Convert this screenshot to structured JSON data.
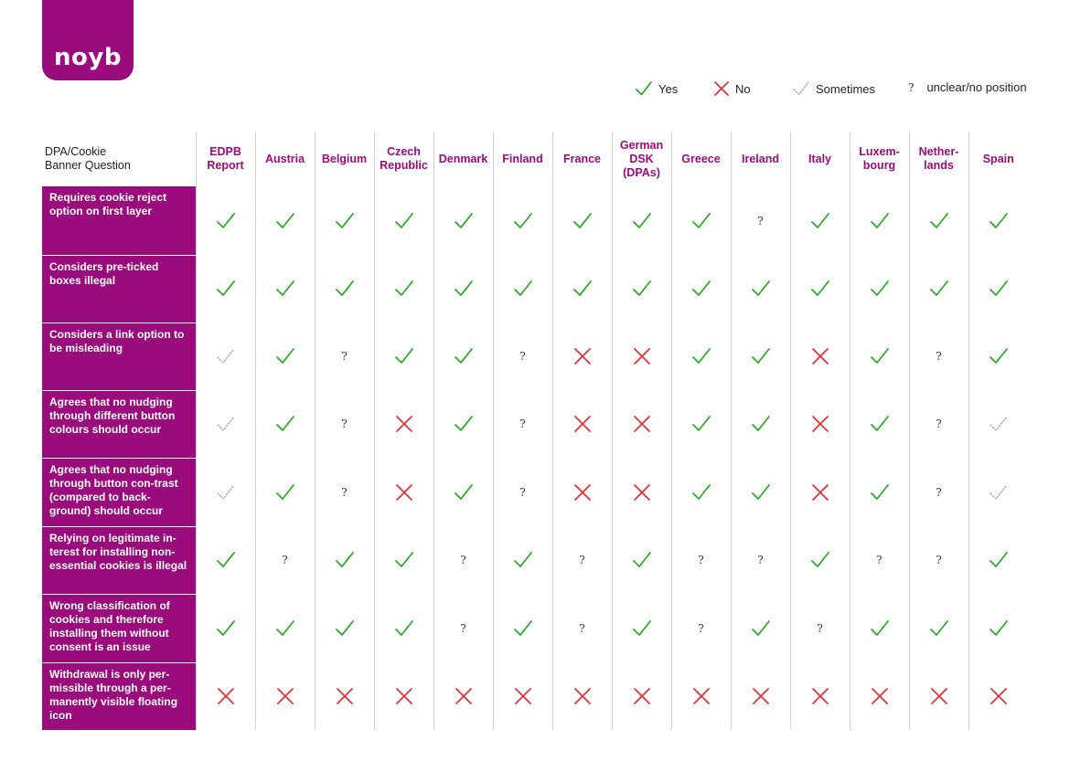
{
  "logo": {
    "text": "noyb"
  },
  "legend": {
    "yes": "Yes",
    "no": "No",
    "sometimes": "Sometimes",
    "unclear": "unclear/no position",
    "unclear_symbol": "?"
  },
  "colors": {
    "brand": "#9a0c7c",
    "yes": "#2eaa2a",
    "no": "#e0343c",
    "sometimes": "#9a9a9a"
  },
  "table": {
    "question_header": "DPA/Cookie\nBanner Question",
    "columns": [
      "EDPB\nReport",
      "Austria",
      "Belgium",
      "Czech\nRepublic",
      "Denmark",
      "Finland",
      "France",
      "German\nDSK\n(DPAs)",
      "Greece",
      "Ireland",
      "Italy",
      "Luxem-\nbourg",
      "Nether-\nlands",
      "Spain"
    ],
    "rows": [
      {
        "question": "Requires cookie reject option on first layer",
        "values": [
          "yes",
          "yes",
          "yes",
          "yes",
          "yes",
          "yes",
          "yes",
          "yes",
          "yes",
          "unclear",
          "yes",
          "yes",
          "yes",
          "yes"
        ]
      },
      {
        "question": "Considers pre-ticked boxes illegal",
        "values": [
          "yes",
          "yes",
          "yes",
          "yes",
          "yes",
          "yes",
          "yes",
          "yes",
          "yes",
          "yes",
          "yes",
          "yes",
          "yes",
          "yes"
        ]
      },
      {
        "question": "Considers a link option to be misleading",
        "values": [
          "sometimes",
          "yes",
          "unclear",
          "yes",
          "yes",
          "unclear",
          "no",
          "no",
          "yes",
          "yes",
          "no",
          "yes",
          "unclear",
          "yes"
        ]
      },
      {
        "question": "Agrees that no nudging through different button colours should occur",
        "values": [
          "sometimes",
          "yes",
          "unclear",
          "no",
          "yes",
          "unclear",
          "no",
          "no",
          "yes",
          "yes",
          "no",
          "yes",
          "unclear",
          "sometimes"
        ]
      },
      {
        "question": "Agrees that no nudging through button con-trast (compared to back-ground) should occur",
        "values": [
          "sometimes",
          "yes",
          "unclear",
          "no",
          "yes",
          "unclear",
          "no",
          "no",
          "yes",
          "yes",
          "no",
          "yes",
          "unclear",
          "sometimes"
        ]
      },
      {
        "question": "Relying on legitimate in-terest for installing non-essential cookies is illegal",
        "values": [
          "yes",
          "unclear",
          "yes",
          "yes",
          "unclear",
          "yes",
          "unclear",
          "yes",
          "unclear",
          "unclear",
          "yes",
          "unclear",
          "unclear",
          "yes"
        ]
      },
      {
        "question": "Wrong classification of cookies and therefore installing them without consent is an issue",
        "values": [
          "yes",
          "yes",
          "yes",
          "yes",
          "unclear",
          "yes",
          "unclear",
          "yes",
          "unclear",
          "yes",
          "unclear",
          "yes",
          "yes",
          "yes"
        ]
      },
      {
        "question": "Withdrawal is only per-missible through a per-manently visible floating icon",
        "values": [
          "no",
          "no",
          "no",
          "no",
          "no",
          "no",
          "no",
          "no",
          "no",
          "no",
          "no",
          "no",
          "no",
          "no"
        ]
      }
    ]
  }
}
